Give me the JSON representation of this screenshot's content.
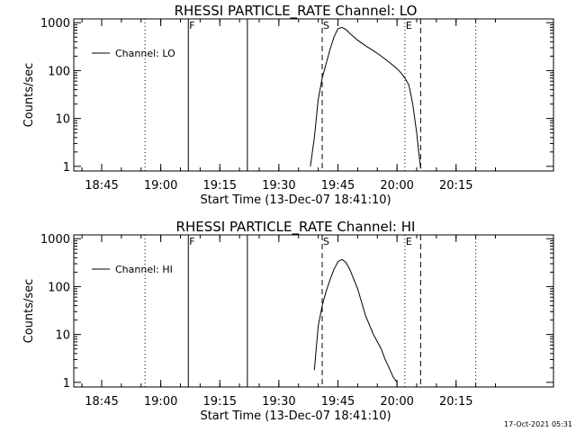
{
  "chart_data": [
    {
      "type": "line",
      "title": "RHESSI PARTICLE_RATE Channel: LO",
      "xlabel": "Start Time (13-Dec-07 18:41:10)",
      "ylabel": "Counts/sec",
      "x_tick_labels": [
        "18:45",
        "19:00",
        "19:15",
        "19:30",
        "19:45",
        "20:00",
        "20:15"
      ],
      "y_tick_labels": [
        "1",
        "10",
        "100",
        "1000"
      ],
      "ylim": [
        0.8,
        1200
      ],
      "yscale": "log",
      "legend": "top-left",
      "series": [
        {
          "name": "Channel: LO",
          "x": [
            "19:38",
            "19:39",
            "19:40",
            "19:41",
            "19:42",
            "19:43",
            "19:44",
            "19:45",
            "19:46",
            "19:47",
            "19:48",
            "19:50",
            "19:52",
            "19:54",
            "19:56",
            "19:58",
            "20:00",
            "20:01",
            "20:02",
            "20:03",
            "20:04",
            "20:05",
            "20:05:30",
            "20:06"
          ],
          "y": [
            1,
            4,
            25,
            70,
            140,
            280,
            500,
            750,
            800,
            720,
            600,
            430,
            330,
            260,
            200,
            150,
            110,
            90,
            70,
            50,
            20,
            5,
            2,
            0.9
          ]
        }
      ],
      "vlines": [
        {
          "label": "",
          "x": "18:56",
          "style": "dotted"
        },
        {
          "label": "F",
          "x": "19:07",
          "style": "solid"
        },
        {
          "label": "",
          "x": "19:22",
          "style": "solid"
        },
        {
          "label": "S",
          "x": "19:41",
          "style": "dashed"
        },
        {
          "label": "E",
          "x": "20:02",
          "style": "dotted"
        },
        {
          "label": "",
          "x": "20:06",
          "style": "dashed"
        },
        {
          "label": "",
          "x": "20:20",
          "style": "dotted"
        }
      ]
    },
    {
      "type": "line",
      "title": "RHESSI PARTICLE_RATE Channel: HI",
      "xlabel": "Start Time (13-Dec-07 18:41:10)",
      "ylabel": "Counts/sec",
      "x_tick_labels": [
        "18:45",
        "19:00",
        "19:15",
        "19:30",
        "19:45",
        "20:00",
        "20:15"
      ],
      "y_tick_labels": [
        "1",
        "10",
        "100",
        "1000"
      ],
      "ylim": [
        0.8,
        1200
      ],
      "yscale": "log",
      "legend": "top-left",
      "series": [
        {
          "name": "Channel: HI",
          "x": [
            "19:39",
            "19:40",
            "19:41",
            "19:42",
            "19:43",
            "19:44",
            "19:45",
            "19:46",
            "19:47",
            "19:48",
            "19:50",
            "19:52",
            "19:54",
            "19:56",
            "19:57",
            "19:58",
            "19:59",
            "20:00"
          ],
          "y": [
            1.8,
            15,
            40,
            80,
            140,
            230,
            330,
            370,
            320,
            230,
            90,
            25,
            10,
            5,
            3,
            2,
            1.3,
            1
          ]
        }
      ],
      "vlines": [
        {
          "label": "",
          "x": "18:56",
          "style": "dotted"
        },
        {
          "label": "F",
          "x": "19:07",
          "style": "solid"
        },
        {
          "label": "",
          "x": "19:22",
          "style": "solid"
        },
        {
          "label": "S",
          "x": "19:41",
          "style": "dashed"
        },
        {
          "label": "E",
          "x": "20:02",
          "style": "dotted"
        },
        {
          "label": "",
          "x": "20:06",
          "style": "dashed"
        },
        {
          "label": "",
          "x": "20:20",
          "style": "dotted"
        }
      ]
    }
  ],
  "footer": {
    "timestamp": "17-Oct-2021 05:31"
  }
}
